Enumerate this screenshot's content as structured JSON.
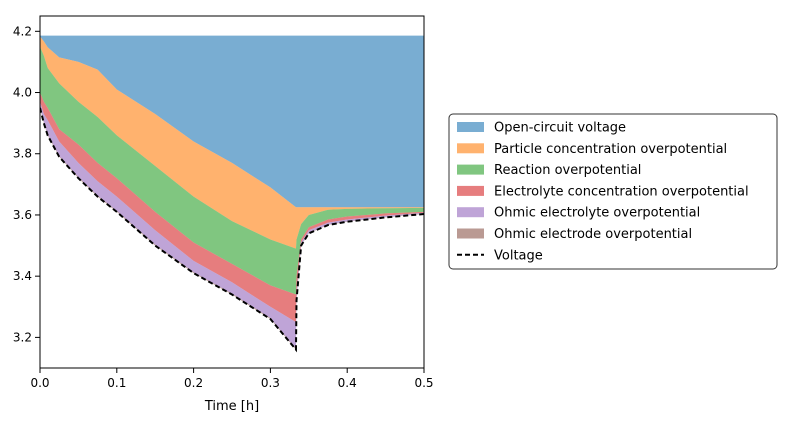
{
  "chart_data": {
    "type": "area",
    "xlabel": "Time [h]",
    "ylabel": "",
    "xlim": [
      0,
      0.5
    ],
    "ylim": [
      3.1,
      4.25
    ],
    "xticks": [
      0.0,
      0.1,
      0.2,
      0.3,
      0.4,
      0.5
    ],
    "xtick_labels": [
      "0.0",
      "0.1",
      "0.2",
      "0.3",
      "0.4",
      "0.5"
    ],
    "yticks": [
      3.2,
      3.4,
      3.6,
      3.8,
      4.0,
      4.2
    ],
    "ytick_labels": [
      "3.2",
      "3.4",
      "3.6",
      "3.8",
      "4.0",
      "4.2"
    ],
    "grid": false,
    "legend_position": "right",
    "x": [
      0,
      0.005,
      0.01,
      0.025,
      0.05,
      0.075,
      0.1,
      0.15,
      0.2,
      0.25,
      0.3,
      0.3333,
      0.334,
      0.34,
      0.35,
      0.375,
      0.4,
      0.45,
      0.5
    ],
    "voltage": [
      3.95,
      3.9,
      3.86,
      3.79,
      3.72,
      3.66,
      3.61,
      3.5,
      3.41,
      3.34,
      3.26,
      3.16,
      3.32,
      3.5,
      3.54,
      3.567,
      3.578,
      3.592,
      3.603
    ],
    "series": [
      {
        "name": "Open-circuit voltage",
        "color": "#1f77b4",
        "upper": [
          4.186,
          4.186,
          4.186,
          4.186,
          4.186,
          4.186,
          4.186,
          4.186,
          4.186,
          4.186,
          4.186,
          4.186,
          4.186,
          4.186,
          4.186,
          4.186,
          4.186,
          4.186,
          4.186
        ],
        "lower": [
          4.183,
          4.167,
          4.148,
          4.115,
          4.1,
          4.075,
          4.01,
          3.93,
          3.84,
          3.77,
          3.69,
          3.625,
          3.625,
          3.625,
          3.625,
          3.625,
          3.625,
          3.625,
          3.625
        ]
      },
      {
        "name": "Particle concentration overpotential",
        "color": "#ff7f0e",
        "upper": [
          4.183,
          4.167,
          4.148,
          4.115,
          4.1,
          4.075,
          4.01,
          3.93,
          3.84,
          3.77,
          3.69,
          3.625,
          3.625,
          3.625,
          3.625,
          3.625,
          3.625,
          3.625,
          3.625
        ],
        "lower": [
          4.15,
          4.12,
          4.08,
          4.03,
          3.97,
          3.92,
          3.86,
          3.76,
          3.66,
          3.58,
          3.52,
          3.49,
          3.52,
          3.57,
          3.6,
          3.617,
          3.62,
          3.622,
          3.623
        ]
      },
      {
        "name": "Reaction overpotential",
        "color": "#2ca02c",
        "upper": [
          4.15,
          4.12,
          4.08,
          4.03,
          3.97,
          3.92,
          3.86,
          3.76,
          3.66,
          3.58,
          3.52,
          3.49,
          3.52,
          3.57,
          3.6,
          3.617,
          3.62,
          3.622,
          3.623
        ],
        "lower": [
          4.0,
          3.97,
          3.95,
          3.88,
          3.83,
          3.77,
          3.72,
          3.61,
          3.51,
          3.44,
          3.37,
          3.34,
          3.4,
          3.52,
          3.56,
          3.585,
          3.595,
          3.605,
          3.61
        ]
      },
      {
        "name": "Electrolyte concentration overpotential",
        "color": "#d62728",
        "upper": [
          4.0,
          3.97,
          3.95,
          3.88,
          3.83,
          3.77,
          3.72,
          3.61,
          3.51,
          3.44,
          3.37,
          3.34,
          3.4,
          3.52,
          3.56,
          3.585,
          3.595,
          3.605,
          3.61
        ],
        "lower": [
          3.97,
          3.93,
          3.91,
          3.84,
          3.77,
          3.71,
          3.66,
          3.55,
          3.45,
          3.38,
          3.3,
          3.25,
          3.35,
          3.51,
          3.55,
          3.575,
          3.585,
          3.598,
          3.607
        ]
      },
      {
        "name": "Ohmic electrolyte overpotential",
        "color": "#9467bd",
        "upper": [
          3.97,
          3.93,
          3.91,
          3.84,
          3.77,
          3.71,
          3.66,
          3.55,
          3.45,
          3.38,
          3.3,
          3.25,
          3.35,
          3.51,
          3.55,
          3.575,
          3.585,
          3.598,
          3.607
        ],
        "lower": [
          3.952,
          3.903,
          3.863,
          3.793,
          3.723,
          3.663,
          3.613,
          3.503,
          3.413,
          3.343,
          3.263,
          3.163,
          3.322,
          3.501,
          3.541,
          3.568,
          3.579,
          3.593,
          3.604
        ]
      },
      {
        "name": "Ohmic electrode overpotential",
        "color": "#8c564b",
        "upper": [
          3.952,
          3.903,
          3.863,
          3.793,
          3.723,
          3.663,
          3.613,
          3.503,
          3.413,
          3.343,
          3.263,
          3.163,
          3.322,
          3.501,
          3.541,
          3.568,
          3.579,
          3.593,
          3.604
        ],
        "lower": [
          3.95,
          3.9,
          3.86,
          3.79,
          3.72,
          3.66,
          3.61,
          3.5,
          3.41,
          3.34,
          3.26,
          3.16,
          3.32,
          3.5,
          3.54,
          3.567,
          3.578,
          3.592,
          3.603
        ]
      }
    ],
    "legend": [
      {
        "label": "Open-circuit voltage",
        "color": "#1f77b4",
        "kind": "patch"
      },
      {
        "label": "Particle concentration overpotential",
        "color": "#ff7f0e",
        "kind": "patch"
      },
      {
        "label": "Reaction overpotential",
        "color": "#2ca02c",
        "kind": "patch"
      },
      {
        "label": "Electrolyte concentration overpotential",
        "color": "#d62728",
        "kind": "patch"
      },
      {
        "label": "Ohmic electrolyte overpotential",
        "color": "#9467bd",
        "kind": "patch"
      },
      {
        "label": "Ohmic electrode overpotential",
        "color": "#8c564b",
        "kind": "patch"
      },
      {
        "label": "Voltage",
        "color": "#000000",
        "kind": "dashed-line"
      }
    ]
  }
}
